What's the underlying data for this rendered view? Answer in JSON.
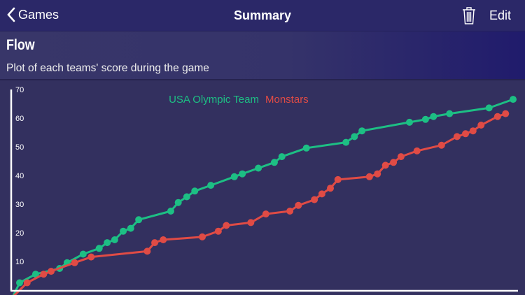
{
  "nav": {
    "back_label": "Games",
    "title": "Summary",
    "edit_label": "Edit",
    "back_icon": "chevron-left-icon",
    "delete_icon": "trash-icon"
  },
  "section": {
    "title": "Flow",
    "subtitle": "Plot of each teams' score during the game"
  },
  "colors": {
    "nav_bg": "#2b2868",
    "chart_bg": "#33305f",
    "team1": "#1dbf84",
    "team2": "#e04b45"
  },
  "chart_data": {
    "type": "line",
    "xlabel": "",
    "ylabel": "",
    "ylim": [
      0,
      70
    ],
    "yticks": [
      10,
      20,
      30,
      40,
      50,
      60,
      70
    ],
    "legend": "top-center",
    "grid": false,
    "series": [
      {
        "name": "USA Olympic Team",
        "color": "#1dbf84",
        "x": [
          0,
          1.4,
          4.6,
          9.4,
          10.9,
          14.1,
          17.3,
          18.9,
          20.4,
          22.1,
          23.6,
          25.2,
          31.6,
          33.1,
          34.8,
          36.4,
          39.6,
          44.3,
          45.9,
          49.1,
          52.3,
          53.8,
          58.7,
          66.6,
          68.3,
          69.8,
          79.3,
          82.5,
          84.1,
          87.3,
          95.2,
          100
        ],
        "y": [
          0,
          5,
          8,
          10,
          12,
          15,
          17,
          19,
          20,
          23,
          24,
          27,
          30,
          33,
          35,
          37,
          39,
          42,
          43,
          45,
          47,
          49,
          52,
          54,
          56,
          58,
          61,
          62,
          63,
          64,
          66,
          69
        ]
      },
      {
        "name": "Monstars",
        "color": "#e04b45",
        "x": [
          0,
          2.9,
          6.2,
          7.7,
          12.4,
          15.7,
          26.9,
          28.4,
          30.1,
          37.9,
          41.1,
          42.7,
          47.6,
          50.6,
          55.4,
          57.1,
          60.3,
          61.8,
          63.5,
          65,
          71.3,
          72.9,
          74.5,
          76.1,
          77.6,
          80.8,
          85.7,
          88.8,
          90.5,
          92,
          93.6,
          96.9,
          98.5
        ],
        "y": [
          0,
          5,
          8,
          9,
          12,
          14,
          16,
          19,
          20,
          21,
          23,
          25,
          26,
          29,
          30,
          32,
          34,
          36,
          38,
          41,
          42,
          43,
          46,
          47,
          49,
          51,
          53,
          56,
          57,
          58,
          60,
          63,
          64
        ]
      }
    ]
  }
}
